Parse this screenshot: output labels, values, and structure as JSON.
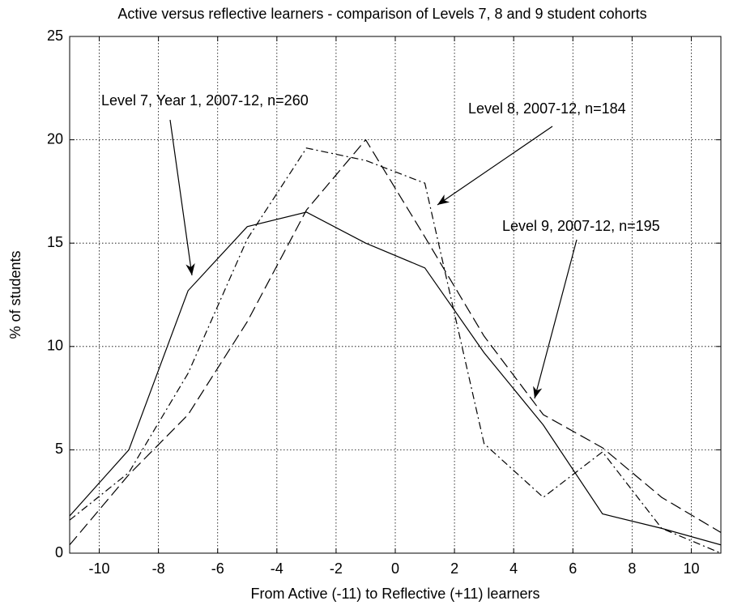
{
  "chart_data": {
    "type": "line",
    "title": "Active versus reflective learners - comparison of Levels 7, 8 and 9 student cohorts",
    "x_label": "From Active (-11) to Reflective (+11) learners",
    "y_label": "% of students",
    "x": [
      -11,
      -9,
      -7,
      -5,
      -3,
      -1,
      1,
      3,
      5,
      7,
      9,
      11
    ],
    "series": [
      {
        "name": "Level 7, Year 1, 2007-12, n=260",
        "color": "#000000",
        "style": "solid",
        "values": [
          1.8,
          5.0,
          12.7,
          15.8,
          16.5,
          15.0,
          13.8,
          9.7,
          6.2,
          1.9,
          1.2,
          0.4
        ]
      },
      {
        "name": "Level 8, 2007-12, n=184",
        "color": "#000000",
        "style": "dashdot",
        "values": [
          1.6,
          3.9,
          8.7,
          15.2,
          19.6,
          19.0,
          17.9,
          5.3,
          2.7,
          4.9,
          1.2,
          0.0
        ]
      },
      {
        "name": "Level 9, 2007-12, n=195",
        "color": "#000000",
        "style": "dashed",
        "values": [
          0.4,
          3.8,
          6.7,
          11.2,
          16.6,
          20.0,
          15.3,
          10.5,
          6.7,
          5.1,
          2.7,
          1.0
        ]
      }
    ],
    "xlim": [
      -11,
      11
    ],
    "xticks": [
      -10,
      -8,
      -6,
      -4,
      -2,
      0,
      2,
      4,
      6,
      8,
      10
    ],
    "ylim": [
      0,
      25
    ],
    "yticks": [
      0,
      5,
      10,
      15,
      20,
      25
    ],
    "grid": true
  }
}
